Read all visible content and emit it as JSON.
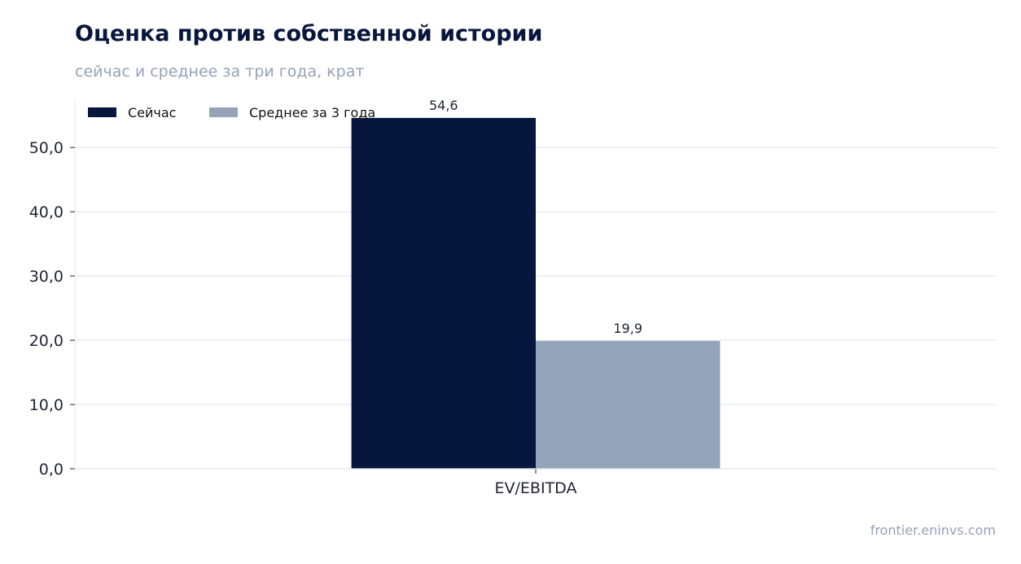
{
  "title": "Оценка против собственной истории",
  "subtitle": "сейчас и среднее за три года, крат",
  "source": "frontier.eninvs.com",
  "chart_data": {
    "type": "bar",
    "categories": [
      "EV/EBITDA"
    ],
    "series": [
      {
        "name": "Сейчас",
        "values": [
          54.6
        ],
        "labels": [
          "54,6"
        ],
        "color": "#07163d"
      },
      {
        "name": "Среднее за 3 года",
        "values": [
          19.9
        ],
        "labels": [
          "19,9"
        ],
        "color": "#94a3b8"
      }
    ],
    "ylim": [
      0,
      57.5
    ],
    "yticks": [
      0,
      10,
      20,
      30,
      40,
      50
    ],
    "ytick_labels": [
      "0,0",
      "10,0",
      "20,0",
      "30,0",
      "40,0",
      "50,0"
    ],
    "grid": true,
    "legend": "top-left",
    "xlabel": "",
    "ylabel": ""
  }
}
